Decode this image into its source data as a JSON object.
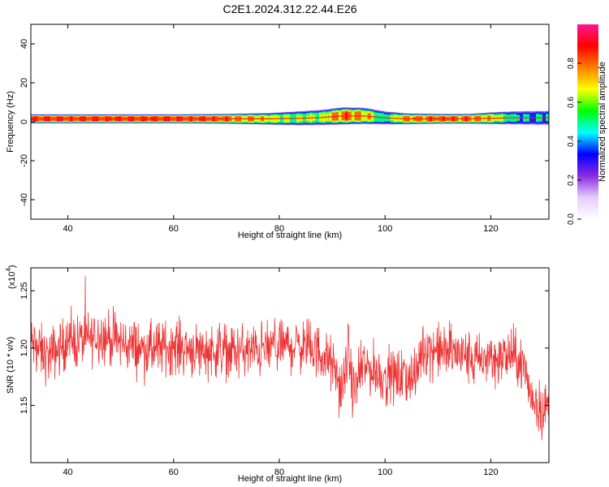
{
  "figure_title": "C2E1.2024.312.22.44.E26",
  "chart_data": [
    {
      "type": "heatmap",
      "title": "C2E1.2024.312.22.44.E26",
      "xlabel": "Height of straight line (km)",
      "ylabel": "Frequency (Hz)",
      "xlim": [
        33,
        131
      ],
      "ylim": [
        -50,
        50
      ],
      "xticks": [
        40,
        60,
        80,
        100,
        120
      ],
      "yticks": [
        -40,
        -20,
        0,
        20,
        40
      ],
      "colorbar": {
        "label": "Normalized spectral amplitude",
        "range": [
          0,
          1
        ],
        "ticks": [
          "0.0",
          "0.2",
          "0.4",
          "0.6",
          "0.8"
        ],
        "colors": [
          "#ffffff",
          "#e6ccff",
          "#8a2be2",
          "#0000ff",
          "#00ffff",
          "#00ff00",
          "#ffff00",
          "#ff7f00",
          "#ff0000",
          "#ff1493"
        ]
      },
      "band": {
        "description_frequency_center_hz": 1.5,
        "heights_km": [
          33,
          40,
          50,
          60,
          70,
          78,
          84,
          88,
          92,
          96,
          100,
          104,
          110,
          116,
          120,
          124,
          128,
          131
        ],
        "center_freq_hz": [
          1.5,
          1.5,
          1.5,
          1.5,
          1.5,
          1.5,
          1.8,
          2.2,
          3.0,
          3.0,
          2.0,
          1.5,
          1.5,
          1.5,
          1.8,
          2.0,
          2.0,
          2.0
        ],
        "half_width_hz": [
          2.0,
          2.0,
          2.0,
          2.0,
          2.2,
          2.6,
          3.2,
          3.4,
          3.8,
          3.6,
          3.0,
          2.4,
          2.2,
          2.2,
          2.6,
          3.0,
          3.2,
          3.2
        ],
        "peak_amplitude": [
          1.0,
          1.0,
          1.0,
          1.0,
          0.95,
          0.8,
          0.7,
          0.75,
          0.95,
          0.9,
          0.6,
          0.9,
          0.95,
          0.95,
          0.85,
          0.6,
          0.55,
          0.6
        ]
      }
    },
    {
      "type": "line",
      "xlabel": "Height of straight line (km)",
      "ylabel": "SNR (10 * v/v)",
      "multiplier_label": "(x10",
      "multiplier_exp": "4",
      "xlim": [
        33,
        131
      ],
      "ylim": [
        11.0,
        12.7
      ],
      "xticks": [
        40,
        60,
        80,
        100,
        120
      ],
      "yticks": [
        11.5,
        12.0,
        12.5
      ],
      "ytick_labels": [
        "1.15",
        "1.20",
        "1.25"
      ],
      "color": "#ee3333",
      "trend": {
        "x": [
          33,
          36,
          40,
          44,
          46,
          50,
          55,
          60,
          65,
          70,
          75,
          80,
          85,
          88,
          90,
          92,
          93,
          94,
          96,
          98,
          100,
          104,
          106,
          107,
          110,
          114,
          118,
          120,
          122,
          124,
          126,
          128,
          130,
          131
        ],
        "y": [
          12.05,
          11.92,
          12.05,
          12.08,
          12.12,
          12.05,
          11.98,
          12.02,
          11.98,
          11.98,
          11.97,
          12.02,
          12.02,
          11.95,
          11.85,
          11.6,
          12.0,
          11.6,
          11.85,
          11.8,
          11.75,
          11.75,
          11.75,
          12.0,
          11.98,
          11.95,
          11.88,
          11.92,
          11.9,
          11.95,
          11.85,
          11.55,
          11.45,
          11.5
        ],
        "noise_amplitude": 0.18,
        "samples": 1400
      }
    }
  ]
}
